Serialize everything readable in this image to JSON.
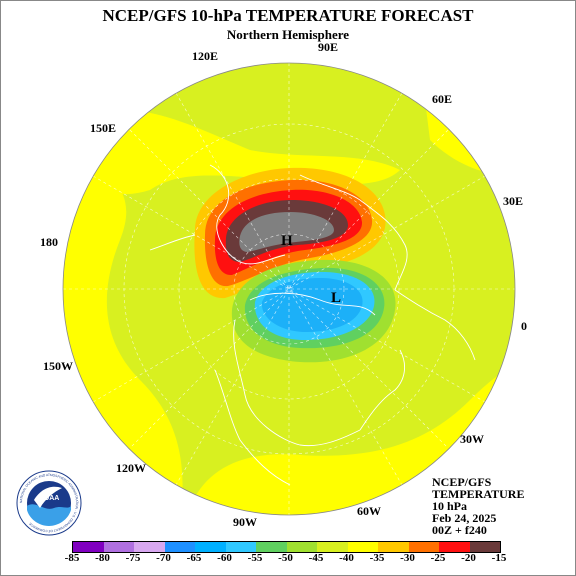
{
  "title": "NCEP/GFS 10-hPa TEMPERATURE FORECAST",
  "subtitle": "Northern Hemisphere",
  "longitude_labels": {
    "e90": "90E",
    "e120": "120E",
    "e60": "60E",
    "e150": "150E",
    "e30": "30E",
    "lon180": "180",
    "lon0": "0",
    "w150": "150W",
    "w30": "30W",
    "w120": "120W",
    "w90": "90W",
    "w60": "60W"
  },
  "map_labels": {
    "high": "H",
    "low": "L"
  },
  "info": {
    "line1": "NCEP/GFS",
    "line2": "TEMPERATURE",
    "line3": "10 hPa",
    "line4": "Feb 24, 2025",
    "line5": "00Z + f240"
  },
  "logo": {
    "text": "NOARA",
    "ring_text": "NATIONAL OCEANIC AND ATMOSPHERIC ADMINISTRATION · U.S. DEPARTMENT OF COMMERCE"
  },
  "colorbar": {
    "labels": [
      "-85",
      "-80",
      "-75",
      "-70",
      "-65",
      "-60",
      "-55",
      "-50",
      "-45",
      "-40",
      "-35",
      "-30",
      "-25",
      "-20",
      "-15"
    ],
    "colors": [
      "#8000c0",
      "#b070e0",
      "#d8a8f0",
      "#1e90ff",
      "#00b0ff",
      "#30c8ff",
      "#60d060",
      "#a0e030",
      "#d8f020",
      "#ffff00",
      "#ffc800",
      "#ff7000",
      "#ff1010",
      "#6a3a3a",
      "#808080"
    ]
  }
}
